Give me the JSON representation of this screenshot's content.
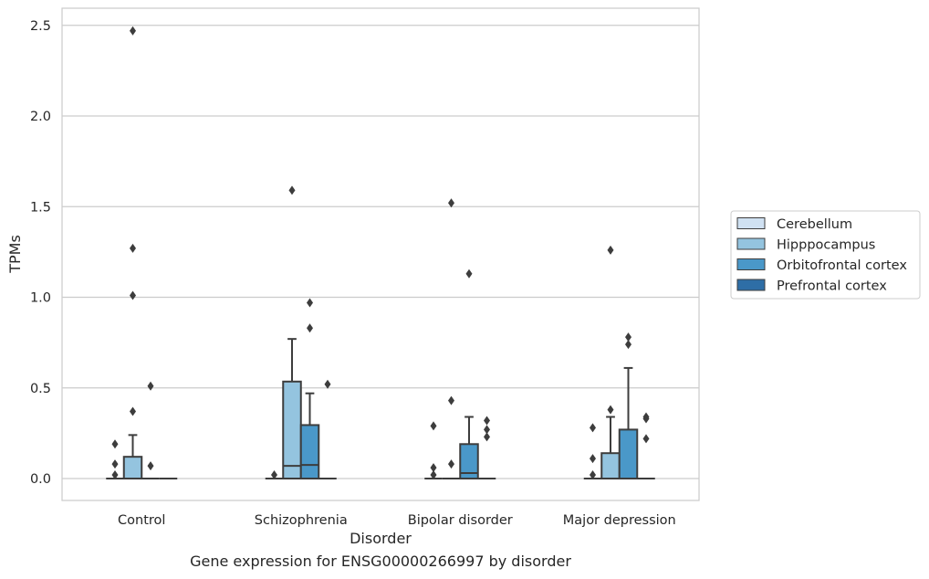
{
  "chart_data": {
    "type": "boxplot",
    "xlabel": "Disorder",
    "ylabel": "TPMs",
    "caption": "Gene expression for ENSG00000266997 by disorder",
    "ylim": [
      -0.12,
      2.6
    ],
    "yticks": [
      "0.0",
      "0.5",
      "1.0",
      "1.5",
      "2.0",
      "2.5"
    ],
    "ytick_values": [
      0.0,
      0.5,
      1.0,
      1.5,
      2.0,
      2.5
    ],
    "grid": true,
    "legend_position": "right",
    "categories": [
      "Control",
      "Schizophrenia",
      "Bipolar disorder",
      "Major depression"
    ],
    "series": [
      {
        "name": "Cerebellum",
        "color": "#d0e1f2",
        "boxes": [
          {
            "q1": 0,
            "median": 0,
            "q3": 0,
            "whisker_low": 0,
            "whisker_high": 0,
            "outliers": [
              0.19,
              0.08,
              0.02
            ]
          },
          {
            "q1": 0,
            "median": 0,
            "q3": 0,
            "whisker_low": 0,
            "whisker_high": 0,
            "outliers": [
              0.02
            ]
          },
          {
            "q1": 0,
            "median": 0,
            "q3": 0,
            "whisker_low": 0,
            "whisker_high": 0,
            "outliers": [
              0.29,
              0.06,
              0.02
            ]
          },
          {
            "q1": 0,
            "median": 0,
            "q3": 0,
            "whisker_low": 0,
            "whisker_high": 0,
            "outliers": [
              0.28,
              0.11,
              0.02
            ]
          }
        ]
      },
      {
        "name": "Hipppocampus",
        "color": "#94c4df",
        "boxes": [
          {
            "q1": 0,
            "median": 0,
            "q3": 0.12,
            "whisker_low": 0,
            "whisker_high": 0.24,
            "outliers": [
              2.47,
              1.27,
              1.01,
              0.37
            ]
          },
          {
            "q1": 0,
            "median": 0.07,
            "q3": 0.535,
            "whisker_low": 0,
            "whisker_high": 0.77,
            "outliers": [
              1.59
            ]
          },
          {
            "q1": 0,
            "median": 0,
            "q3": 0,
            "whisker_low": 0,
            "whisker_high": 0,
            "outliers": [
              1.52,
              0.43,
              0.08
            ]
          },
          {
            "q1": 0,
            "median": 0,
            "q3": 0.14,
            "whisker_low": 0,
            "whisker_high": 0.34,
            "outliers": [
              1.26,
              0.38
            ]
          }
        ]
      },
      {
        "name": "Orbitofrontal cortex",
        "color": "#4a98c9",
        "boxes": [
          {
            "q1": 0,
            "median": 0,
            "q3": 0,
            "whisker_low": 0,
            "whisker_high": 0,
            "outliers": [
              0.51,
              0.07
            ]
          },
          {
            "q1": 0,
            "median": 0.075,
            "q3": 0.295,
            "whisker_low": 0,
            "whisker_high": 0.47,
            "outliers": [
              0.97,
              0.83
            ]
          },
          {
            "q1": 0,
            "median": 0.03,
            "q3": 0.19,
            "whisker_low": 0,
            "whisker_high": 0.34,
            "outliers": [
              1.13
            ]
          },
          {
            "q1": 0,
            "median": 0,
            "q3": 0.27,
            "whisker_low": 0,
            "whisker_high": 0.61,
            "outliers": [
              0.78,
              0.74
            ]
          }
        ]
      },
      {
        "name": "Prefrontal cortex",
        "color": "#2e6ea6",
        "boxes": [
          {
            "q1": 0,
            "median": 0,
            "q3": 0,
            "whisker_low": 0,
            "whisker_high": 0,
            "outliers": []
          },
          {
            "q1": 0,
            "median": 0,
            "q3": 0,
            "whisker_low": 0,
            "whisker_high": 0,
            "outliers": [
              0.52
            ]
          },
          {
            "q1": 0,
            "median": 0,
            "q3": 0,
            "whisker_low": 0,
            "whisker_high": 0,
            "outliers": [
              0.32,
              0.27,
              0.23
            ]
          },
          {
            "q1": 0,
            "median": 0,
            "q3": 0,
            "whisker_low": 0,
            "whisker_high": 0,
            "outliers": [
              0.34,
              0.33,
              0.22
            ]
          }
        ]
      }
    ]
  }
}
